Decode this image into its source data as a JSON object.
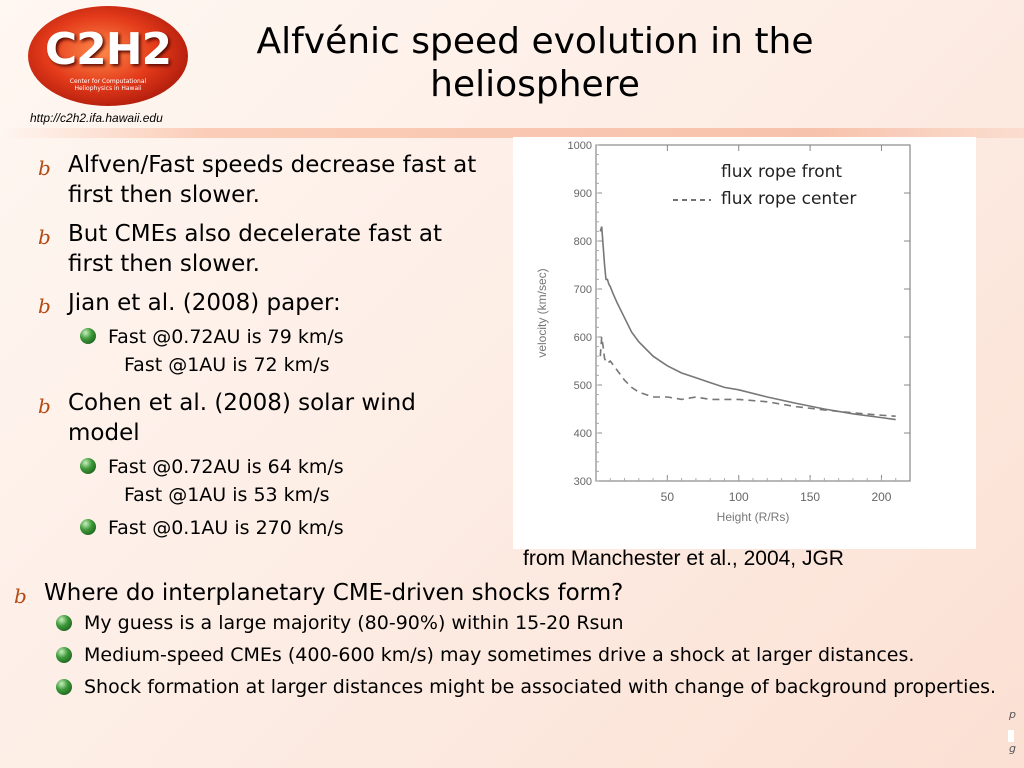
{
  "header": {
    "logo_text": "C2H2",
    "logo_sub": "Center for Computational Heliophysics in Hawaii",
    "url": "http://c2h2.ifa.hawaii.edu",
    "title": "Alfvénic speed evolution in the heliosphere"
  },
  "bullets": [
    {
      "text": "Alfven/Fast speeds decrease fast at first then slower.",
      "sub": []
    },
    {
      "text": "But CMEs also decelerate fast at first then slower.",
      "sub": []
    },
    {
      "text": "Jian et al. (2008) paper:",
      "sub": [
        {
          "l1": "Fast @0.72AU is 79 km/s",
          "l2": "Fast @1AU is 72 km/s"
        }
      ]
    },
    {
      "text": "Cohen et al. (2008) solar wind model",
      "sub": [
        {
          "l1": "Fast @0.72AU is 64 km/s",
          "l2": "Fast @1AU is 53 km/s"
        },
        {
          "l1": "Fast @0.1AU is 270 km/s",
          "l2": ""
        }
      ]
    }
  ],
  "chart_caption": "from Manchester et al., 2004, JGR",
  "lower": {
    "question": "Where do interplanetary CME-driven shocks form?",
    "items": [
      "My guess is a large majority (80-90%) within 15-20 Rsun",
      "Medium-speed CMEs (400-600 km/s) may sometimes drive a shock at larger distances.",
      "Shock formation at larger distances might be associated with change of background properties."
    ]
  },
  "corner": {
    "top": "p",
    "bottom": "g"
  },
  "chart_data": {
    "type": "line",
    "title": "",
    "xlabel": "Height (R/Rs)",
    "ylabel": "velocity (km/sec)",
    "xlim": [
      0,
      220
    ],
    "ylim": [
      300,
      1000
    ],
    "xticks": [
      "50",
      "100",
      "150",
      "200"
    ],
    "yticks": [
      "300",
      "400",
      "500",
      "600",
      "700",
      "800",
      "900",
      "1000"
    ],
    "legend_position": "top-right",
    "series": [
      {
        "name": "flux rope front",
        "style": "solid",
        "x": [
          3,
          4,
          5,
          6,
          7,
          8,
          9,
          10,
          12,
          15,
          20,
          25,
          30,
          40,
          50,
          60,
          70,
          80,
          90,
          100,
          120,
          140,
          160,
          180,
          200,
          210
        ],
        "y": [
          820,
          830,
          790,
          750,
          720,
          720,
          710,
          705,
          690,
          670,
          640,
          610,
          590,
          560,
          540,
          525,
          515,
          505,
          495,
          490,
          475,
          462,
          450,
          440,
          432,
          428
        ]
      },
      {
        "name": "flux rope center",
        "style": "dashed",
        "x": [
          3,
          4,
          5,
          6,
          8,
          10,
          15,
          20,
          25,
          30,
          40,
          50,
          60,
          70,
          80,
          100,
          120,
          140,
          160,
          180,
          200,
          210
        ],
        "y": [
          560,
          600,
          580,
          555,
          545,
          550,
          530,
          510,
          495,
          485,
          475,
          475,
          470,
          475,
          470,
          470,
          465,
          455,
          448,
          442,
          437,
          435
        ]
      }
    ]
  }
}
